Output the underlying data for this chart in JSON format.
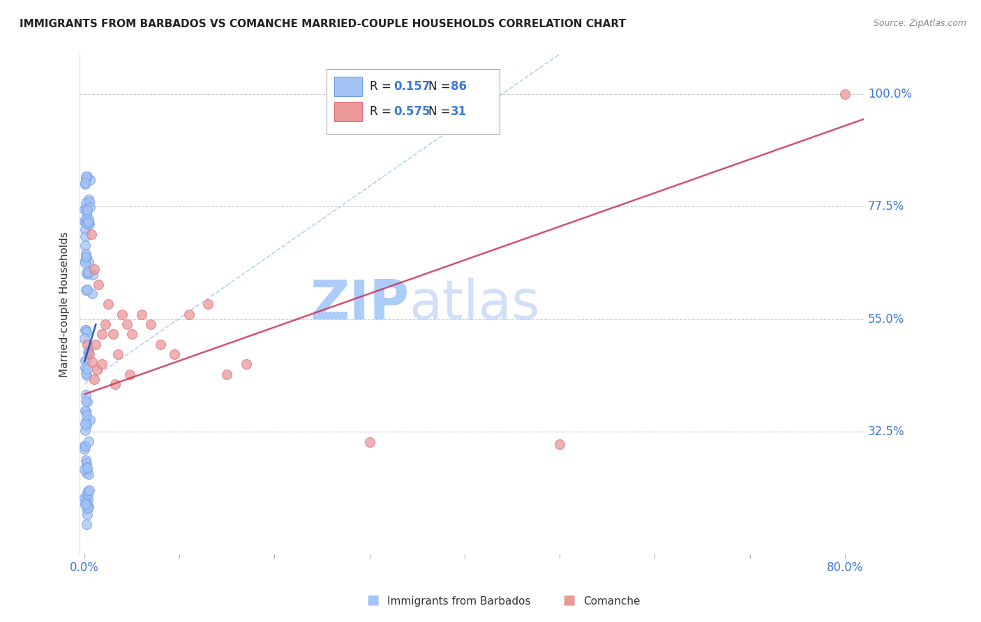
{
  "title": "IMMIGRANTS FROM BARBADOS VS COMANCHE MARRIED-COUPLE HOUSEHOLDS CORRELATION CHART",
  "source": "Source: ZipAtlas.com",
  "ylabel": "Married-couple Households",
  "series1_label": "Immigrants from Barbados",
  "series2_label": "Comanche",
  "series1_R": 0.157,
  "series1_N": 86,
  "series2_R": 0.575,
  "series2_N": 31,
  "xlim": [
    -0.005,
    0.82
  ],
  "ylim": [
    0.08,
    1.08
  ],
  "yticks": [
    0.325,
    0.55,
    0.775,
    1.0
  ],
  "ytick_labels": [
    "32.5%",
    "55.0%",
    "77.5%",
    "100.0%"
  ],
  "color1": "#a4c2f4",
  "color2": "#ea9999",
  "color1_edge": "#6d9eeb",
  "color2_edge": "#e06c7c",
  "trend1_color": "#1155cc",
  "trend2_color": "#cc3355",
  "diag_color": "#9fc5f8",
  "axis_label_color": "#3d78d8",
  "legend_text_color": "#3d78d8",
  "watermark_zip_color": "#9fc5f8",
  "watermark_atlas_color": "#c9daf8"
}
